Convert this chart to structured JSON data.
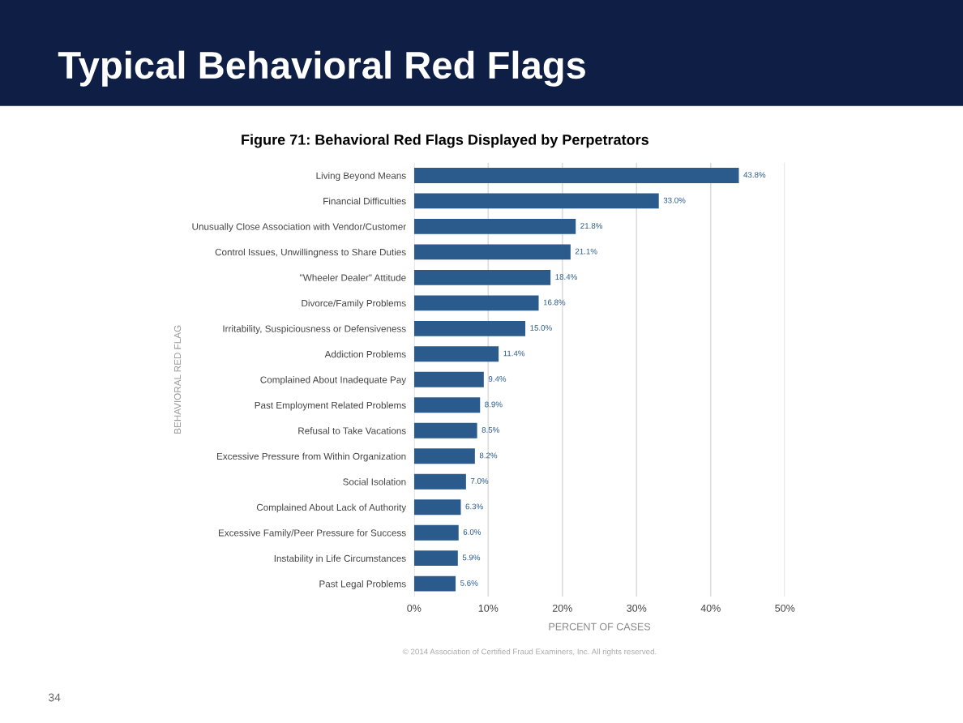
{
  "chart_data": {
    "type": "bar",
    "orientation": "horizontal",
    "title": "Typical Behavioral Red Flags",
    "subtitle": "Figure 71: Behavioral Red Flags Displayed by Perpetrators",
    "xlabel": "PERCENT OF CASES",
    "ylabel": "BEHAVIORAL RED FLAG",
    "categories": [
      "Living Beyond Means",
      "Financial Difficulties",
      "Unusually Close Association with Vendor/Customer",
      "Control Issues, Unwillingness to Share Duties",
      "\"Wheeler Dealer\" Attitude",
      "Divorce/Family Problems",
      "Irritability, Suspiciousness or Defensiveness",
      "Addiction Problems",
      "Complained About Inadequate Pay",
      "Past Employment Related Problems",
      "Refusal to Take Vacations",
      "Excessive Pressure from Within Organization",
      "Social Isolation",
      "Complained About Lack of Authority",
      "Excessive Family/Peer Pressure for Success",
      "Instability in Life Circumstances",
      "Past Legal Problems"
    ],
    "values": [
      43.8,
      33.0,
      21.8,
      21.1,
      18.4,
      16.8,
      15.0,
      11.4,
      9.4,
      8.9,
      8.5,
      8.2,
      7.0,
      6.3,
      6.0,
      5.9,
      5.6
    ],
    "value_labels": [
      "43.8%",
      "33.0%",
      "21.8%",
      "21.1%",
      "18.4%",
      "16.8%",
      "15.0%",
      "11.4%",
      "9.4%",
      "8.9%",
      "8.5%",
      "8.2%",
      "7.0%",
      "6.3%",
      "6.0%",
      "5.9%",
      "5.6%"
    ],
    "color": "#2a5b8c",
    "xlim": [
      0,
      50
    ],
    "xticks": [
      {
        "value": 0,
        "label": "0%"
      },
      {
        "value": 10,
        "label": "10%"
      },
      {
        "value": 20,
        "label": "20%"
      },
      {
        "value": 30,
        "label": "30%"
      },
      {
        "value": 40,
        "label": "40%"
      },
      {
        "value": 50,
        "label": "50%"
      }
    ],
    "grid": "x",
    "legend": false,
    "annotations": [
      "© 2014 Association of Certified Fraud Examiners, Inc. All rights reserved.",
      "34"
    ]
  }
}
